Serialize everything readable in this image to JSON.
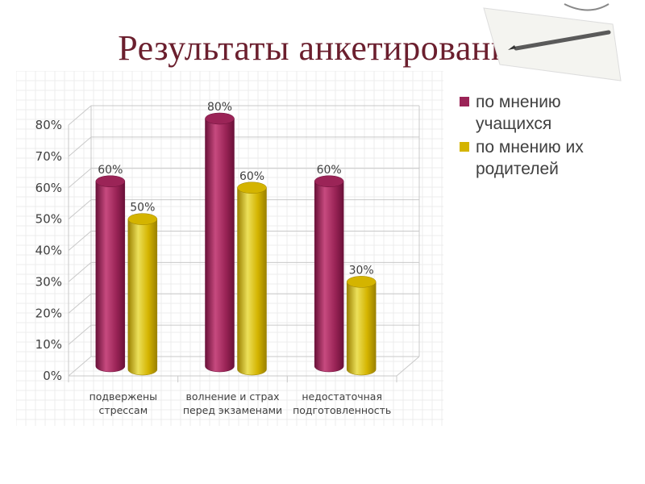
{
  "slide": {
    "title": "Результаты анкетирования"
  },
  "colors": {
    "series1": "#9b2457",
    "series1_dark": "#6a1038",
    "series1_light": "#c74a7f",
    "series2": "#d4b400",
    "series2_dark": "#9a8000",
    "series2_light": "#ece05a",
    "grid": "#c9c9c9",
    "axis_text": "#404040"
  },
  "chart_data": {
    "type": "bar",
    "style": "3d-cylinder",
    "categories": [
      "подвержены стрессам",
      "волнение и страх перед экзаменами",
      "недостаточная подготовленность"
    ],
    "category_lines": [
      [
        "подвержены",
        "стрессам"
      ],
      [
        "волнение и страх",
        "перед экзаменами"
      ],
      [
        "недостаточная",
        "подготовленность"
      ]
    ],
    "series": [
      {
        "name": "по мнению учащихся",
        "name_lines": [
          "по мнению",
          "учащихся"
        ],
        "values": [
          60,
          80,
          60
        ],
        "labels": [
          "60%",
          "80%",
          "60%"
        ]
      },
      {
        "name": "по мнению их родителей",
        "name_lines": [
          "по мнению их",
          "родителей"
        ],
        "values": [
          50,
          60,
          30
        ],
        "labels": [
          "50%",
          "60%",
          "30%"
        ]
      }
    ],
    "ylim": [
      0,
      80
    ],
    "yticks": [
      "0%",
      "10%",
      "20%",
      "30%",
      "40%",
      "50%",
      "60%",
      "70%",
      "80%"
    ],
    "grid": true,
    "legend_position": "right"
  }
}
